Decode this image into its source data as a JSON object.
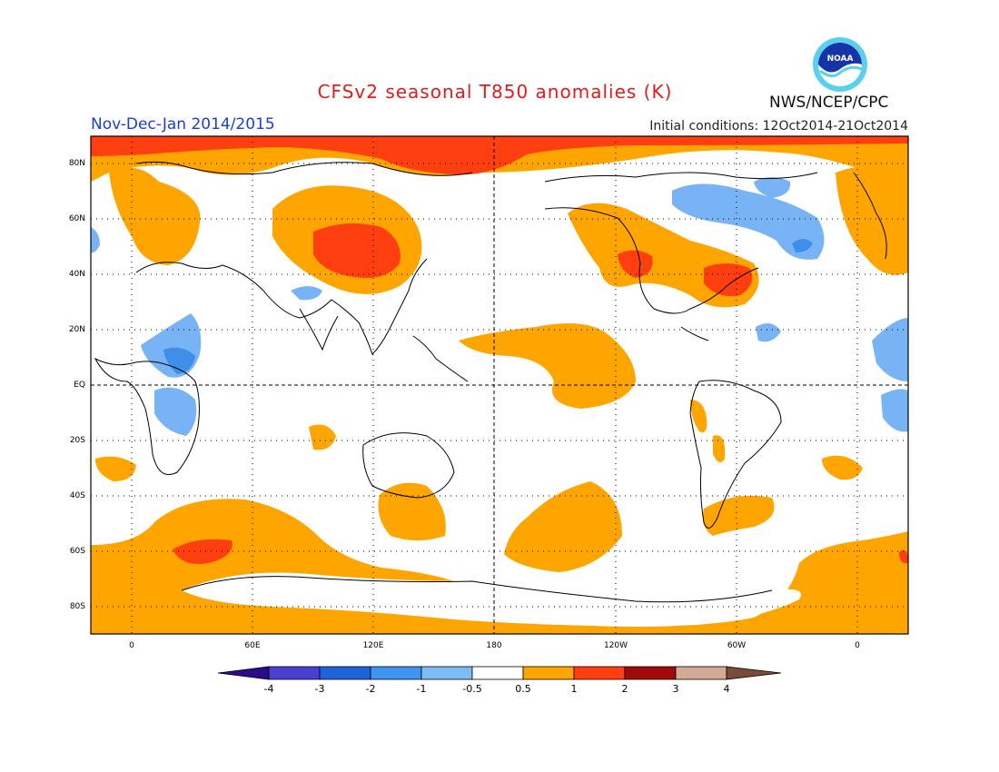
{
  "title": "CFSv2 seasonal T850 anomalies (K)",
  "agency": "NWS/NCEP/CPC",
  "logo_text": "NOAA",
  "period": "Nov-Dec-Jan 2014/2015",
  "initial_conditions": "Initial conditions: 12Oct2014-21Oct2014",
  "lat_labels": [
    "80N",
    "60N",
    "40N",
    "20N",
    "EQ",
    "20S",
    "40S",
    "60S",
    "80S"
  ],
  "lon_labels": [
    "0",
    "60E",
    "120E",
    "180",
    "120W",
    "60W",
    "0"
  ],
  "colorbar": {
    "ticks": [
      "-4",
      "-3",
      "-2",
      "-1",
      "-0.5",
      "0.5",
      "1",
      "2",
      "3",
      "4"
    ],
    "colors": [
      "#2c0a8c",
      "#4a3fcf",
      "#1e64d8",
      "#3f94ef",
      "#7dbcf5",
      "#ffffff",
      "#ffa500",
      "#ff3f0f",
      "#a00a0a",
      "#d2aa96",
      "#7a4b3a"
    ]
  },
  "colors": {
    "warm": "#ffa500",
    "hot": "#ff3f0f",
    "cool": "#78b4f5",
    "coldcore": "#3f8fe8"
  }
}
